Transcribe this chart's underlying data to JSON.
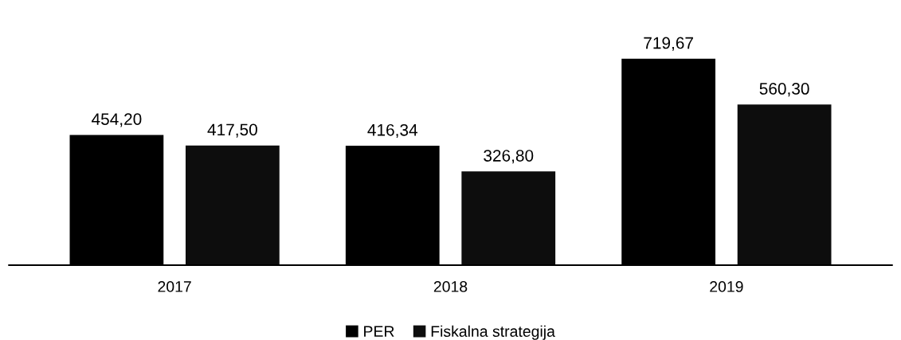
{
  "chart_data": {
    "type": "bar",
    "categories": [
      "2017",
      "2018",
      "2019"
    ],
    "series": [
      {
        "name": "PER",
        "color": "#000000",
        "values": [
          454.2,
          416.34,
          719.67
        ],
        "value_labels": [
          "454,20",
          "416,34",
          "719,67"
        ]
      },
      {
        "name": "Fiskalna strategija",
        "color": "#0d0d0d",
        "values": [
          417.5,
          326.8,
          560.3
        ],
        "value_labels": [
          "417,50",
          "326,80",
          "560,30"
        ]
      }
    ],
    "legend": "bottom",
    "grid": false
  }
}
